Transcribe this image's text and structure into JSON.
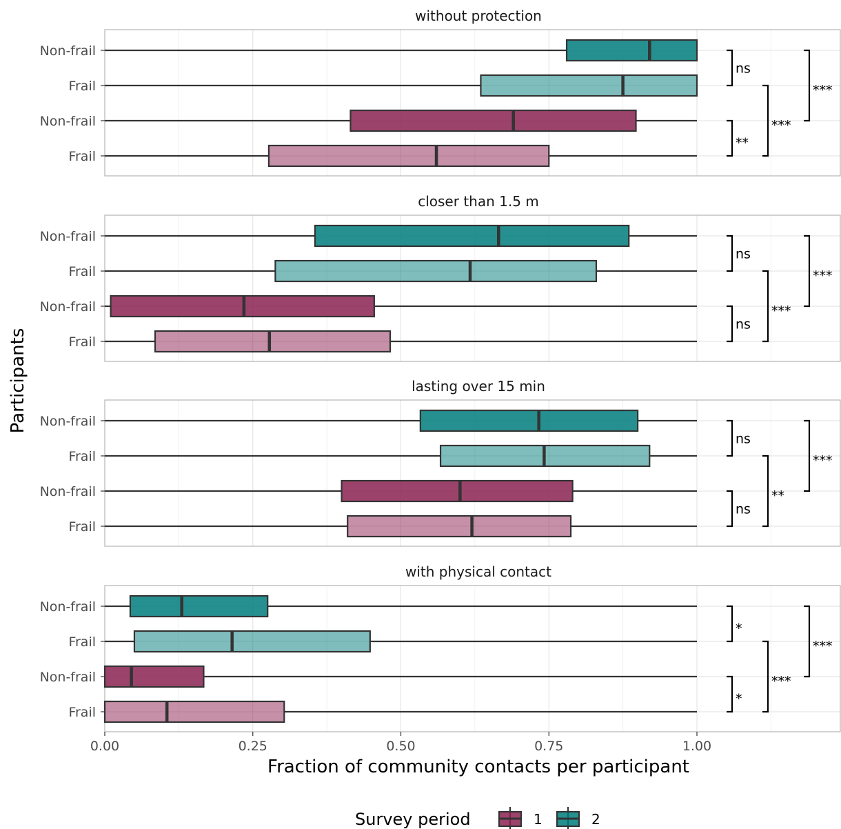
{
  "chart_data": {
    "type": "boxplot",
    "xlabel": "Fraction of community contacts per participant",
    "ylabel": "Participants",
    "xlim": [
      0,
      1.24
    ],
    "x_ticks": [
      "0.00",
      "0.25",
      "0.50",
      "0.75",
      "1.00"
    ],
    "x_tick_values": [
      0,
      0.25,
      0.5,
      0.75,
      1.0
    ],
    "grid": true,
    "legend": {
      "title": "Survey period",
      "position": "bottom",
      "entries": [
        {
          "label": "1",
          "color": "#8B2252"
        },
        {
          "label": "2",
          "color": "#007B7B"
        }
      ]
    },
    "panels": [
      {
        "title": "without protection",
        "boxes": [
          {
            "category": "Non-frail",
            "period": "2",
            "min": 0.0,
            "q1": 0.78,
            "median": 0.92,
            "q3": 1.0,
            "max": 1.0
          },
          {
            "category": "Frail",
            "period": "2",
            "min": 0.0,
            "q1": 0.635,
            "median": 0.875,
            "q3": 1.0,
            "max": 1.0
          },
          {
            "category": "Non-frail",
            "period": "1",
            "min": 0.0,
            "q1": 0.415,
            "median": 0.69,
            "q3": 0.897,
            "max": 1.0
          },
          {
            "category": "Frail",
            "period": "1",
            "min": 0.0,
            "q1": 0.277,
            "median": 0.56,
            "q3": 0.75,
            "max": 1.0
          }
        ],
        "significance": [
          {
            "from": 0,
            "to": 1,
            "label": "ns",
            "level": 0
          },
          {
            "from": 2,
            "to": 3,
            "label": "**",
            "level": 0
          },
          {
            "from": 1,
            "to": 3,
            "label": "***",
            "level": 1
          },
          {
            "from": 0,
            "to": 2,
            "label": "***",
            "level": 2
          }
        ]
      },
      {
        "title": "closer than 1.5 m",
        "boxes": [
          {
            "category": "Non-frail",
            "period": "2",
            "min": 0.0,
            "q1": 0.355,
            "median": 0.665,
            "q3": 0.885,
            "max": 1.0
          },
          {
            "category": "Frail",
            "period": "2",
            "min": 0.0,
            "q1": 0.288,
            "median": 0.617,
            "q3": 0.83,
            "max": 1.0
          },
          {
            "category": "Non-frail",
            "period": "1",
            "min": 0.0,
            "q1": 0.01,
            "median": 0.235,
            "q3": 0.455,
            "max": 1.0
          },
          {
            "category": "Frail",
            "period": "1",
            "min": 0.0,
            "q1": 0.085,
            "median": 0.278,
            "q3": 0.482,
            "max": 1.0
          }
        ],
        "significance": [
          {
            "from": 0,
            "to": 1,
            "label": "ns",
            "level": 0
          },
          {
            "from": 2,
            "to": 3,
            "label": "ns",
            "level": 0
          },
          {
            "from": 1,
            "to": 3,
            "label": "***",
            "level": 1
          },
          {
            "from": 0,
            "to": 2,
            "label": "***",
            "level": 2
          }
        ]
      },
      {
        "title": "lasting over 15 min",
        "boxes": [
          {
            "category": "Non-frail",
            "period": "2",
            "min": 0.0,
            "q1": 0.533,
            "median": 0.733,
            "q3": 0.9,
            "max": 1.0
          },
          {
            "category": "Frail",
            "period": "2",
            "min": 0.0,
            "q1": 0.567,
            "median": 0.742,
            "q3": 0.92,
            "max": 1.0
          },
          {
            "category": "Non-frail",
            "period": "1",
            "min": 0.0,
            "q1": 0.4,
            "median": 0.6,
            "q3": 0.79,
            "max": 1.0
          },
          {
            "category": "Frail",
            "period": "1",
            "min": 0.0,
            "q1": 0.41,
            "median": 0.62,
            "q3": 0.787,
            "max": 1.0
          }
        ],
        "significance": [
          {
            "from": 0,
            "to": 1,
            "label": "ns",
            "level": 0
          },
          {
            "from": 2,
            "to": 3,
            "label": "ns",
            "level": 0
          },
          {
            "from": 1,
            "to": 3,
            "label": "**",
            "level": 1
          },
          {
            "from": 0,
            "to": 2,
            "label": "***",
            "level": 2
          }
        ]
      },
      {
        "title": "with physical contact",
        "boxes": [
          {
            "category": "Non-frail",
            "period": "2",
            "min": 0.0,
            "q1": 0.043,
            "median": 0.13,
            "q3": 0.275,
            "max": 1.0
          },
          {
            "category": "Frail",
            "period": "2",
            "min": 0.0,
            "q1": 0.05,
            "median": 0.215,
            "q3": 0.448,
            "max": 1.0
          },
          {
            "category": "Non-frail",
            "period": "1",
            "min": 0.0,
            "q1": 0.0,
            "median": 0.045,
            "q3": 0.167,
            "max": 1.0
          },
          {
            "category": "Frail",
            "period": "1",
            "min": 0.0,
            "q1": 0.0,
            "median": 0.105,
            "q3": 0.303,
            "max": 1.0
          }
        ],
        "significance": [
          {
            "from": 0,
            "to": 1,
            "label": "*",
            "level": 0
          },
          {
            "from": 2,
            "to": 3,
            "label": "*",
            "level": 0
          },
          {
            "from": 1,
            "to": 3,
            "label": "***",
            "level": 1
          },
          {
            "from": 0,
            "to": 2,
            "label": "***",
            "level": 2
          }
        ]
      }
    ],
    "colors": {
      "period_1": "#8B2252",
      "period_2": "#007B7B",
      "frail_alpha": 0.5,
      "box_stroke": "#333333",
      "grid_major": "#e0e0e0",
      "grid_minor": "#f0f0f0",
      "panel_border": "#b3b3b3"
    }
  }
}
